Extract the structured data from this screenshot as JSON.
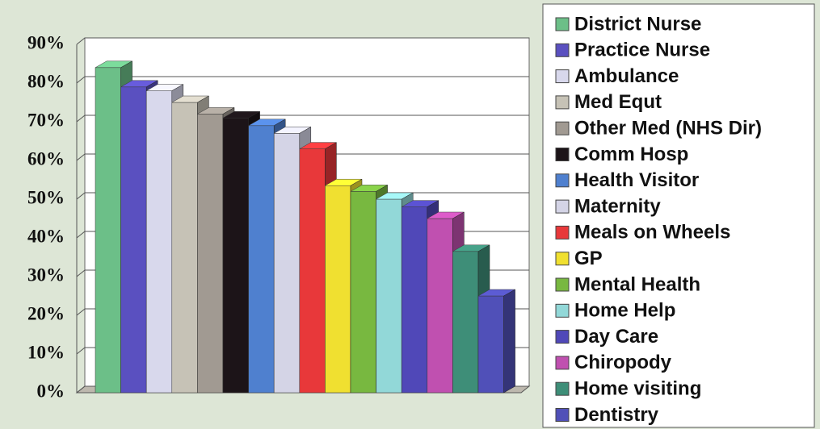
{
  "chart_data": {
    "type": "bar3d",
    "categories": [
      "District Nurse",
      "Practice Nurse",
      "Ambulance",
      "Med Equt",
      "Other Med (NHS Dir)",
      "Comm Hosp",
      "Health Visitor",
      "Maternity",
      "Meals on Wheels",
      "GP",
      "Mental Health",
      "Home Help",
      "Day Care",
      "Chiropody",
      "Home visiting",
      "Dentistry"
    ],
    "values": [
      84,
      79,
      78,
      75,
      72,
      71,
      69,
      67,
      63,
      53.5,
      52,
      50,
      48,
      45,
      36.5,
      25
    ],
    "colors": [
      "#6cbf88",
      "#5a50c0",
      "#d8d8ec",
      "#c6c2b6",
      "#a19a92",
      "#1c1418",
      "#4f80cf",
      "#d4d4e6",
      "#e8383a",
      "#f0e030",
      "#78b840",
      "#92d8d8",
      "#5048b8",
      "#c050b0",
      "#3e8e78",
      "#5050b8"
    ],
    "ylim": [
      0,
      90
    ],
    "yticks": [
      {
        "value": 0,
        "label": "0%"
      },
      {
        "value": 10,
        "label": "10%"
      },
      {
        "value": 20,
        "label": "20%"
      },
      {
        "value": 30,
        "label": "30%"
      },
      {
        "value": 40,
        "label": "40%"
      },
      {
        "value": 50,
        "label": "50%"
      },
      {
        "value": 60,
        "label": "60%"
      },
      {
        "value": 70,
        "label": "70%"
      },
      {
        "value": 80,
        "label": "80%"
      },
      {
        "value": 90,
        "label": "90%"
      }
    ],
    "grid": true,
    "legend": "right"
  }
}
